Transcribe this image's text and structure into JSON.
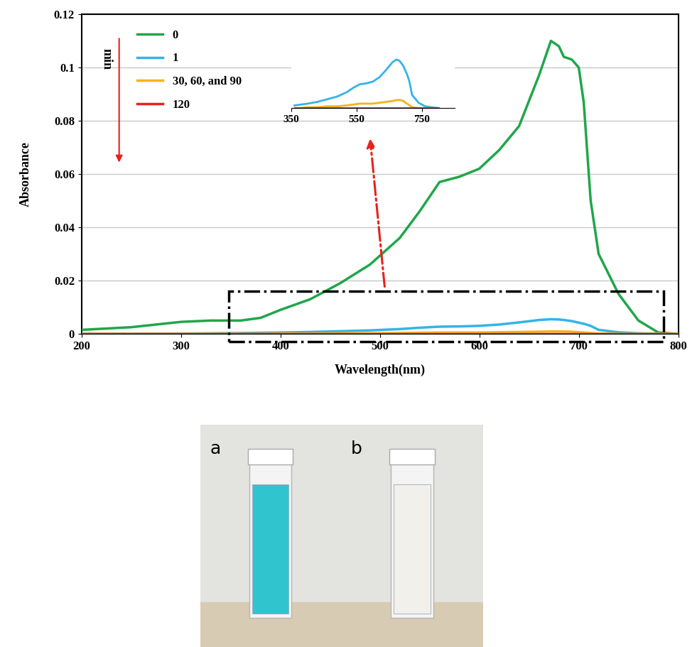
{
  "chart_data": [
    {
      "type": "line",
      "x_label": "Wavelength(nm)",
      "y_label": "Absorbance",
      "annotation": "min",
      "x": [
        200,
        250,
        300,
        330,
        360,
        380,
        400,
        430,
        460,
        490,
        520,
        540,
        560,
        580,
        600,
        620,
        640,
        660,
        672,
        680,
        685,
        693,
        700,
        705,
        712,
        720,
        740,
        760,
        780,
        800
      ],
      "series": [
        {
          "name": "0",
          "color": "#1fa64a",
          "values": [
            0.0015,
            0.0025,
            0.0045,
            0.005,
            0.005,
            0.006,
            0.009,
            0.013,
            0.019,
            0.026,
            0.036,
            0.046,
            0.057,
            0.059,
            0.062,
            0.069,
            0.078,
            0.097,
            0.11,
            0.108,
            0.104,
            0.103,
            0.1,
            0.087,
            0.05,
            0.03,
            0.015,
            0.005,
            0.0005,
            0
          ]
        },
        {
          "name": "1",
          "color": "#35b3e8",
          "values": [
            0,
            0,
            0.0001,
            0.0002,
            0.0003,
            0.0004,
            0.0005,
            0.0007,
            0.001,
            0.0013,
            0.0018,
            0.0023,
            0.0027,
            0.0028,
            0.003,
            0.0035,
            0.0043,
            0.0052,
            0.0055,
            0.0054,
            0.0052,
            0.0048,
            0.0042,
            0.0038,
            0.003,
            0.0015,
            0.0006,
            0.0002,
            0.0001,
            0
          ]
        },
        {
          "name": "30, 60, and 90",
          "color": "#f5b21b",
          "values": [
            0,
            0,
            0,
            0,
            0,
            0,
            0.0001,
            0.0001,
            0.0002,
            0.0002,
            0.0003,
            0.0004,
            0.0005,
            0.0005,
            0.0005,
            0.0006,
            0.0007,
            0.0008,
            0.0009,
            0.0009,
            0.0009,
            0.0008,
            0.0006,
            0.0005,
            0.0003,
            0.0001,
            0,
            0,
            0,
            0
          ]
        },
        {
          "name": "120",
          "color": "#e8211c",
          "values": [
            0,
            0,
            0,
            0,
            0,
            0,
            0,
            0,
            0,
            0,
            0,
            0,
            0,
            0,
            0,
            0,
            0,
            0,
            0,
            0,
            0,
            0,
            0,
            0,
            0,
            0,
            0,
            0,
            0,
            0
          ]
        }
      ],
      "xlim": [
        200,
        800
      ],
      "xticks": [
        200,
        300,
        400,
        500,
        600,
        700,
        800
      ],
      "ylim": [
        0,
        0.12
      ],
      "yticks": [
        0,
        0.02,
        0.04,
        0.06,
        0.08,
        0.1,
        0.12
      ],
      "grid": "y",
      "legend": "upper left"
    },
    {
      "type": "line",
      "x": [
        360,
        380,
        400,
        430,
        460,
        490,
        520,
        540,
        560,
        580,
        600,
        620,
        640,
        660,
        672,
        680,
        685,
        693,
        700,
        705,
        712,
        720,
        740,
        760,
        780,
        800
      ],
      "series": [
        {
          "name": "1",
          "color": "#35b3e8",
          "values": [
            0.0003,
            0.0004,
            0.0005,
            0.0007,
            0.001,
            0.0013,
            0.0018,
            0.0023,
            0.0027,
            0.0028,
            0.003,
            0.0035,
            0.0043,
            0.0052,
            0.0055,
            0.0054,
            0.0052,
            0.0048,
            0.0042,
            0.0038,
            0.003,
            0.0015,
            0.0006,
            0.0002,
            0.0001,
            0
          ]
        },
        {
          "name": "30, 60, and 90",
          "color": "#f5b21b",
          "values": [
            0,
            0,
            0.0001,
            0.0001,
            0.0002,
            0.0002,
            0.0003,
            0.0004,
            0.0005,
            0.0005,
            0.0005,
            0.0006,
            0.0007,
            0.0008,
            0.0009,
            0.0009,
            0.0009,
            0.0008,
            0.0006,
            0.0005,
            0.0003,
            0.0001,
            0,
            0,
            0,
            0
          ]
        },
        {
          "name": "120",
          "color": "#e8211c",
          "values": [
            0,
            0,
            0,
            0,
            0,
            0,
            0,
            0,
            0,
            0,
            0,
            0,
            0,
            0,
            0,
            0,
            0,
            0,
            0,
            0,
            0,
            0,
            0,
            0,
            0,
            0
          ]
        }
      ],
      "xlim": [
        350,
        850
      ],
      "xticks": [
        350,
        550,
        750
      ],
      "ylim": [
        0,
        0.0058
      ],
      "tick_labels": "x"
    }
  ],
  "photos": {
    "panels": [
      {
        "label": "a"
      },
      {
        "label": "b"
      }
    ]
  }
}
